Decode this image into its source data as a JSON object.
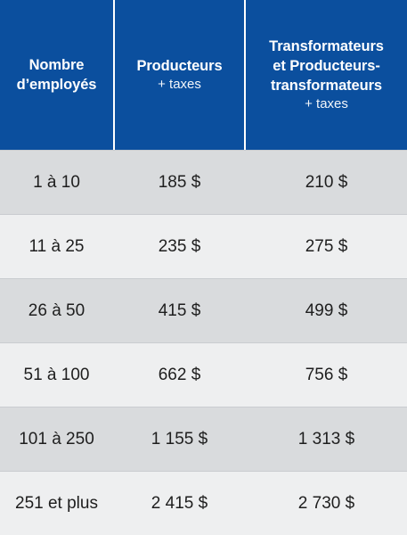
{
  "header": {
    "col0": {
      "title": "Nombre\nd’employés",
      "sub": ""
    },
    "col1": {
      "title": "Producteurs",
      "sub": "+ taxes"
    },
    "col2": {
      "title": "Transformateurs\net Producteurs-\ntransformateurs",
      "sub": "+ taxes"
    }
  },
  "rows": [
    {
      "employees": "1 à 10",
      "producteurs": "185 $",
      "transformateurs": "210 $"
    },
    {
      "employees": "11 à 25",
      "producteurs": "235 $",
      "transformateurs": "275 $"
    },
    {
      "employees": "26 à 50",
      "producteurs": "415 $",
      "transformateurs": "499 $"
    },
    {
      "employees": "51 à 100",
      "producteurs": "662 $",
      "transformateurs": "756 $"
    },
    {
      "employees": "101 à 250",
      "producteurs": "1 155 $",
      "transformateurs": "1 313 $"
    },
    {
      "employees": "251 et plus",
      "producteurs": "2 415 $",
      "transformateurs": "2 730 $"
    }
  ],
  "colors": {
    "header_bg": "#0b4f9e",
    "row_dark": "#d9dbdd",
    "row_light": "#eeeff0"
  }
}
